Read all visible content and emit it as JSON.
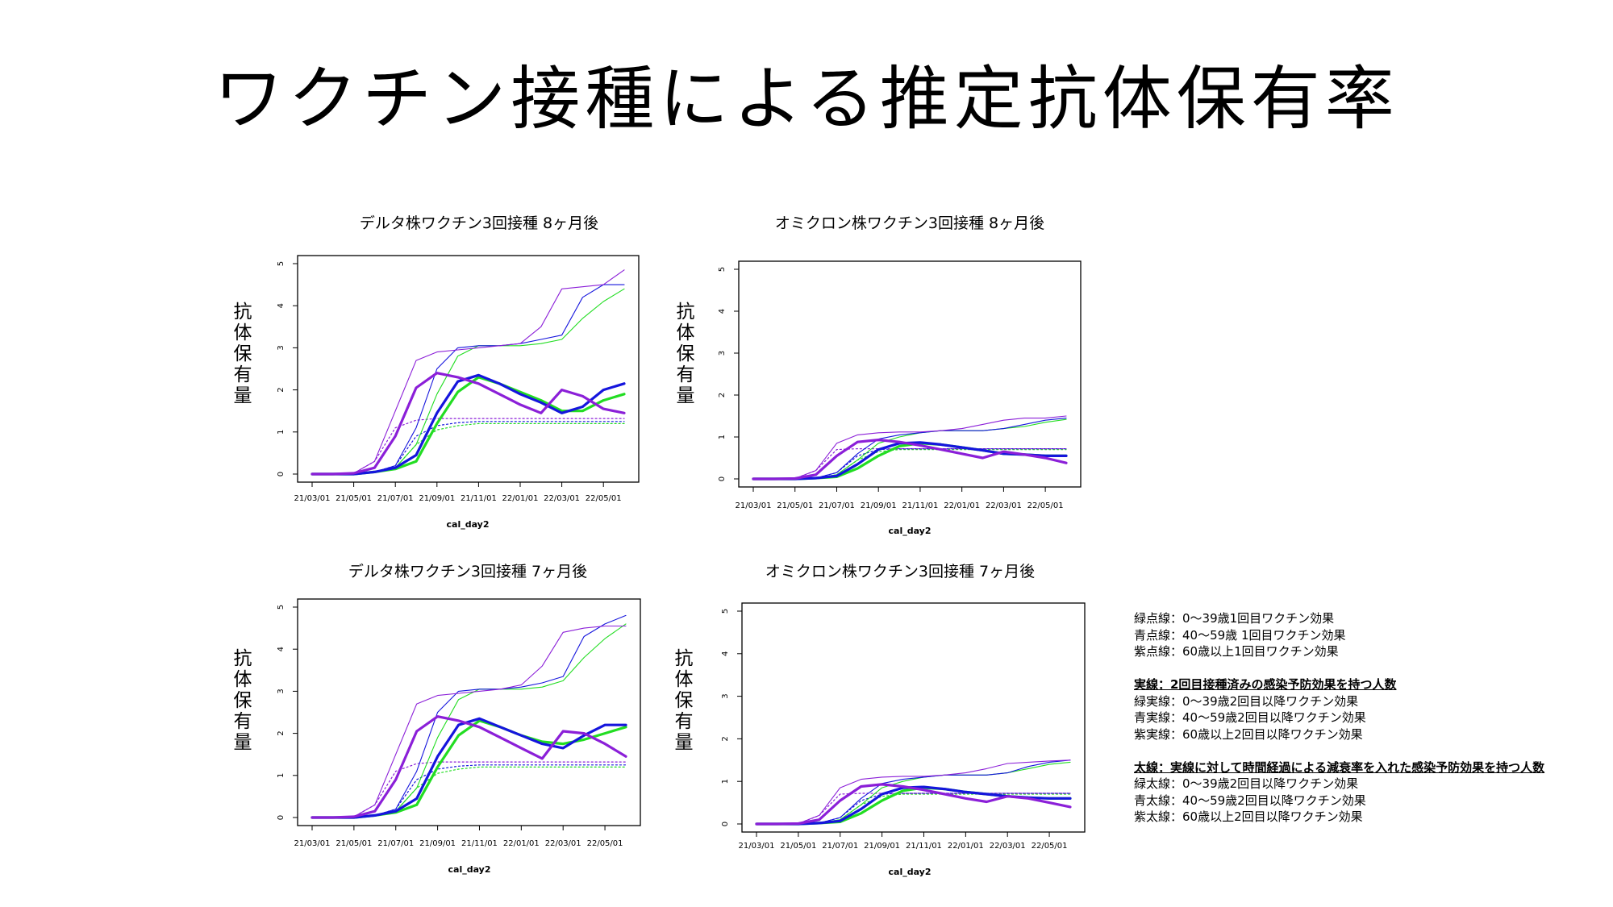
{
  "title": "ワクチン接種による推定抗体保有率",
  "colors": {
    "green": "#22dd22",
    "blue": "#1515dd",
    "purple": "#8b1fd8"
  },
  "chart_data": [
    {
      "type": "line",
      "title": "デルタ株ワクチン3回接種 8ヶ月後",
      "xlabel": "cal_day2",
      "ylabel": "抗体保有量",
      "x": [
        "21/03/01",
        "21/04/01",
        "21/05/01",
        "21/06/01",
        "21/07/01",
        "21/08/01",
        "21/09/01",
        "21/10/01",
        "21/11/01",
        "21/12/01",
        "22/01/01",
        "22/02/01",
        "22/03/01",
        "22/04/01",
        "22/05/01",
        "22/06/01"
      ],
      "xticks": [
        "21/03/01",
        "21/05/01",
        "21/07/01",
        "21/09/01",
        "21/11/01",
        "22/01/01",
        "22/03/01",
        "22/05/01"
      ],
      "ylim": [
        0,
        5
      ],
      "yticks": [
        0,
        1,
        2,
        3,
        4,
        5
      ],
      "series": [
        {
          "name": "緑点線",
          "color": "green",
          "style": "dotted",
          "values": [
            0,
            0,
            0,
            0.05,
            0.15,
            0.7,
            1.05,
            1.15,
            1.2,
            1.2,
            1.2,
            1.2,
            1.2,
            1.2,
            1.2,
            1.2
          ]
        },
        {
          "name": "青点線",
          "color": "blue",
          "style": "dotted",
          "values": [
            0,
            0,
            0,
            0.05,
            0.2,
            0.9,
            1.15,
            1.22,
            1.25,
            1.25,
            1.25,
            1.25,
            1.25,
            1.25,
            1.25,
            1.25
          ]
        },
        {
          "name": "紫点線",
          "color": "purple",
          "style": "dotted",
          "values": [
            0,
            0,
            0.02,
            0.3,
            1.1,
            1.28,
            1.32,
            1.32,
            1.32,
            1.32,
            1.32,
            1.32,
            1.32,
            1.32,
            1.32,
            1.32
          ]
        },
        {
          "name": "緑実線",
          "color": "green",
          "style": "thin",
          "values": [
            0,
            0,
            0,
            0.05,
            0.15,
            0.7,
            1.9,
            2.8,
            3.05,
            3.05,
            3.05,
            3.1,
            3.2,
            3.7,
            4.1,
            4.4
          ]
        },
        {
          "name": "青実線",
          "color": "blue",
          "style": "thin",
          "values": [
            0,
            0,
            0,
            0.05,
            0.2,
            1.1,
            2.5,
            3.0,
            3.05,
            3.05,
            3.1,
            3.2,
            3.3,
            4.2,
            4.5,
            4.5
          ]
        },
        {
          "name": "紫実線",
          "color": "purple",
          "style": "thin",
          "values": [
            0,
            0,
            0.02,
            0.3,
            1.5,
            2.7,
            2.9,
            2.95,
            3.0,
            3.05,
            3.1,
            3.5,
            4.4,
            4.45,
            4.5,
            4.85
          ]
        },
        {
          "name": "緑太線",
          "color": "green",
          "style": "thick",
          "values": [
            0,
            0,
            0,
            0.05,
            0.12,
            0.3,
            1.2,
            1.95,
            2.3,
            2.15,
            1.95,
            1.75,
            1.5,
            1.5,
            1.75,
            1.9
          ]
        },
        {
          "name": "青太線",
          "color": "blue",
          "style": "thick",
          "values": [
            0,
            0,
            0,
            0.05,
            0.15,
            0.45,
            1.45,
            2.2,
            2.35,
            2.15,
            1.9,
            1.7,
            1.45,
            1.6,
            2.0,
            2.15
          ]
        },
        {
          "name": "紫太線",
          "color": "purple",
          "style": "thick",
          "values": [
            0,
            0,
            0.02,
            0.15,
            0.9,
            2.05,
            2.4,
            2.3,
            2.15,
            1.9,
            1.65,
            1.45,
            2.0,
            1.85,
            1.55,
            1.45
          ]
        }
      ]
    },
    {
      "type": "line",
      "title": "オミクロン株ワクチン3回接種 8ヶ月後",
      "xlabel": "cal_day2",
      "ylabel": "抗体保有量",
      "x": [
        "21/03/01",
        "21/04/01",
        "21/05/01",
        "21/06/01",
        "21/07/01",
        "21/08/01",
        "21/09/01",
        "21/10/01",
        "21/11/01",
        "21/12/01",
        "22/01/01",
        "22/02/01",
        "22/03/01",
        "22/04/01",
        "22/05/01",
        "22/06/01"
      ],
      "xticks": [
        "21/03/01",
        "21/05/01",
        "21/07/01",
        "21/09/01",
        "21/11/01",
        "22/01/01",
        "22/03/01",
        "22/05/01"
      ],
      "ylim": [
        0,
        5
      ],
      "yticks": [
        0,
        1,
        2,
        3,
        4,
        5
      ],
      "series": [
        {
          "name": "緑点線",
          "color": "green",
          "style": "dotted",
          "values": [
            0,
            0,
            0,
            0.02,
            0.1,
            0.45,
            0.65,
            0.7,
            0.7,
            0.7,
            0.7,
            0.7,
            0.7,
            0.7,
            0.7,
            0.7
          ]
        },
        {
          "name": "青点線",
          "color": "blue",
          "style": "dotted",
          "values": [
            0,
            0,
            0,
            0.02,
            0.15,
            0.55,
            0.7,
            0.72,
            0.72,
            0.72,
            0.72,
            0.72,
            0.72,
            0.72,
            0.72,
            0.72
          ]
        },
        {
          "name": "紫点線",
          "color": "purple",
          "style": "dotted",
          "values": [
            0,
            0,
            0.01,
            0.2,
            0.7,
            0.72,
            0.72,
            0.72,
            0.72,
            0.72,
            0.72,
            0.72,
            0.72,
            0.72,
            0.72,
            0.72
          ]
        },
        {
          "name": "緑実線",
          "color": "green",
          "style": "thin",
          "values": [
            0,
            0,
            0,
            0.02,
            0.1,
            0.45,
            0.85,
            1.0,
            1.1,
            1.15,
            1.15,
            1.15,
            1.2,
            1.25,
            1.35,
            1.42
          ]
        },
        {
          "name": "青実線",
          "color": "blue",
          "style": "thin",
          "values": [
            0,
            0,
            0,
            0.02,
            0.15,
            0.6,
            0.95,
            1.05,
            1.1,
            1.15,
            1.15,
            1.15,
            1.2,
            1.3,
            1.4,
            1.45
          ]
        },
        {
          "name": "紫実線",
          "color": "purple",
          "style": "thin",
          "values": [
            0,
            0,
            0.01,
            0.2,
            0.85,
            1.05,
            1.1,
            1.12,
            1.12,
            1.15,
            1.2,
            1.3,
            1.4,
            1.45,
            1.45,
            1.5
          ]
        },
        {
          "name": "緑太線",
          "color": "green",
          "style": "thick",
          "values": [
            0,
            0,
            0,
            0.02,
            0.05,
            0.25,
            0.55,
            0.78,
            0.85,
            0.82,
            0.75,
            0.68,
            0.6,
            0.58,
            0.55,
            0.55
          ]
        },
        {
          "name": "青太線",
          "color": "blue",
          "style": "thick",
          "values": [
            0,
            0,
            0,
            0.02,
            0.07,
            0.35,
            0.7,
            0.85,
            0.87,
            0.82,
            0.75,
            0.68,
            0.6,
            0.58,
            0.55,
            0.55
          ]
        },
        {
          "name": "紫太線",
          "color": "purple",
          "style": "thick",
          "values": [
            0,
            0,
            0.01,
            0.1,
            0.55,
            0.88,
            0.93,
            0.88,
            0.8,
            0.7,
            0.6,
            0.5,
            0.65,
            0.58,
            0.5,
            0.38
          ]
        }
      ]
    },
    {
      "type": "line",
      "title": "デルタ株ワクチン3回接種 7ヶ月後",
      "xlabel": "cal_day2",
      "ylabel": "抗体保有量",
      "x": [
        "21/03/01",
        "21/04/01",
        "21/05/01",
        "21/06/01",
        "21/07/01",
        "21/08/01",
        "21/09/01",
        "21/10/01",
        "21/11/01",
        "21/12/01",
        "22/01/01",
        "22/02/01",
        "22/03/01",
        "22/04/01",
        "22/05/01",
        "22/06/01"
      ],
      "xticks": [
        "21/03/01",
        "21/05/01",
        "21/07/01",
        "21/09/01",
        "21/11/01",
        "22/01/01",
        "22/03/01",
        "22/05/01"
      ],
      "ylim": [
        0,
        5
      ],
      "yticks": [
        0,
        1,
        2,
        3,
        4,
        5
      ],
      "series": [
        {
          "name": "緑点線",
          "color": "green",
          "style": "dotted",
          "values": [
            0,
            0,
            0,
            0.05,
            0.15,
            0.7,
            1.05,
            1.15,
            1.2,
            1.2,
            1.2,
            1.2,
            1.2,
            1.2,
            1.2,
            1.2
          ]
        },
        {
          "name": "青点線",
          "color": "blue",
          "style": "dotted",
          "values": [
            0,
            0,
            0,
            0.05,
            0.2,
            0.9,
            1.15,
            1.22,
            1.25,
            1.25,
            1.25,
            1.25,
            1.25,
            1.25,
            1.25,
            1.25
          ]
        },
        {
          "name": "紫点線",
          "color": "purple",
          "style": "dotted",
          "values": [
            0,
            0,
            0.02,
            0.3,
            1.1,
            1.28,
            1.32,
            1.32,
            1.32,
            1.32,
            1.32,
            1.32,
            1.32,
            1.32,
            1.32,
            1.32
          ]
        },
        {
          "name": "緑実線",
          "color": "green",
          "style": "thin",
          "values": [
            0,
            0,
            0,
            0.05,
            0.15,
            0.7,
            1.9,
            2.8,
            3.05,
            3.05,
            3.05,
            3.1,
            3.25,
            3.8,
            4.25,
            4.6
          ]
        },
        {
          "name": "青実線",
          "color": "blue",
          "style": "thin",
          "values": [
            0,
            0,
            0,
            0.05,
            0.2,
            1.1,
            2.5,
            3.0,
            3.05,
            3.05,
            3.1,
            3.2,
            3.35,
            4.3,
            4.6,
            4.8
          ]
        },
        {
          "name": "紫実線",
          "color": "purple",
          "style": "thin",
          "values": [
            0,
            0,
            0.02,
            0.3,
            1.5,
            2.7,
            2.9,
            2.95,
            3.0,
            3.05,
            3.15,
            3.6,
            4.4,
            4.5,
            4.55,
            4.55
          ]
        },
        {
          "name": "緑太線",
          "color": "green",
          "style": "thick",
          "values": [
            0,
            0,
            0,
            0.05,
            0.12,
            0.3,
            1.2,
            1.95,
            2.3,
            2.15,
            1.95,
            1.8,
            1.75,
            1.85,
            2.0,
            2.15
          ]
        },
        {
          "name": "青太線",
          "color": "blue",
          "style": "thick",
          "values": [
            0,
            0,
            0,
            0.05,
            0.15,
            0.45,
            1.45,
            2.2,
            2.35,
            2.15,
            1.95,
            1.75,
            1.65,
            1.95,
            2.2,
            2.2
          ]
        },
        {
          "name": "紫太線",
          "color": "purple",
          "style": "thick",
          "values": [
            0,
            0,
            0.02,
            0.15,
            0.9,
            2.05,
            2.4,
            2.3,
            2.15,
            1.9,
            1.65,
            1.4,
            2.05,
            2.0,
            1.75,
            1.45
          ]
        }
      ]
    },
    {
      "type": "line",
      "title": "オミクロン株ワクチン3回接種 7ヶ月後",
      "xlabel": "cal_day2",
      "ylabel": "抗体保有量",
      "x": [
        "21/03/01",
        "21/04/01",
        "21/05/01",
        "21/06/01",
        "21/07/01",
        "21/08/01",
        "21/09/01",
        "21/10/01",
        "21/11/01",
        "21/12/01",
        "22/01/01",
        "22/02/01",
        "22/03/01",
        "22/04/01",
        "22/05/01",
        "22/06/01"
      ],
      "xticks": [
        "21/03/01",
        "21/05/01",
        "21/07/01",
        "21/09/01",
        "21/11/01",
        "22/01/01",
        "22/03/01",
        "22/05/01"
      ],
      "ylim": [
        0,
        5
      ],
      "yticks": [
        0,
        1,
        2,
        3,
        4,
        5
      ],
      "series": [
        {
          "name": "緑点線",
          "color": "green",
          "style": "dotted",
          "values": [
            0,
            0,
            0,
            0.02,
            0.1,
            0.45,
            0.65,
            0.7,
            0.7,
            0.7,
            0.7,
            0.7,
            0.7,
            0.7,
            0.7,
            0.7
          ]
        },
        {
          "name": "青点線",
          "color": "blue",
          "style": "dotted",
          "values": [
            0,
            0,
            0,
            0.02,
            0.15,
            0.55,
            0.7,
            0.72,
            0.72,
            0.72,
            0.72,
            0.72,
            0.72,
            0.72,
            0.72,
            0.72
          ]
        },
        {
          "name": "紫点線",
          "color": "purple",
          "style": "dotted",
          "values": [
            0,
            0,
            0.01,
            0.2,
            0.7,
            0.72,
            0.72,
            0.72,
            0.72,
            0.72,
            0.72,
            0.72,
            0.72,
            0.72,
            0.72,
            0.72
          ]
        },
        {
          "name": "緑実線",
          "color": "green",
          "style": "thin",
          "values": [
            0,
            0,
            0,
            0.02,
            0.1,
            0.45,
            0.85,
            1.0,
            1.1,
            1.15,
            1.15,
            1.15,
            1.2,
            1.3,
            1.4,
            1.45
          ]
        },
        {
          "name": "青実線",
          "color": "blue",
          "style": "thin",
          "values": [
            0,
            0,
            0,
            0.02,
            0.15,
            0.6,
            0.95,
            1.05,
            1.1,
            1.15,
            1.15,
            1.15,
            1.2,
            1.35,
            1.45,
            1.5
          ]
        },
        {
          "name": "紫実線",
          "color": "purple",
          "style": "thin",
          "values": [
            0,
            0,
            0.01,
            0.2,
            0.85,
            1.05,
            1.1,
            1.12,
            1.12,
            1.15,
            1.2,
            1.3,
            1.42,
            1.45,
            1.48,
            1.5
          ]
        },
        {
          "name": "緑太線",
          "color": "green",
          "style": "thick",
          "values": [
            0,
            0,
            0,
            0.02,
            0.05,
            0.25,
            0.55,
            0.78,
            0.85,
            0.82,
            0.75,
            0.7,
            0.65,
            0.62,
            0.6,
            0.6
          ]
        },
        {
          "name": "青太線",
          "color": "blue",
          "style": "thick",
          "values": [
            0,
            0,
            0,
            0.02,
            0.07,
            0.35,
            0.7,
            0.85,
            0.87,
            0.82,
            0.75,
            0.7,
            0.65,
            0.62,
            0.6,
            0.6
          ]
        },
        {
          "name": "紫太線",
          "color": "purple",
          "style": "thick",
          "values": [
            0,
            0,
            0.01,
            0.1,
            0.55,
            0.88,
            0.93,
            0.88,
            0.8,
            0.7,
            0.6,
            0.52,
            0.65,
            0.6,
            0.5,
            0.4
          ]
        }
      ]
    }
  ],
  "legend": {
    "dotted_lines": [
      "緑点線：0～39歳1回目ワクチン効果",
      "青点線：40～59歳 1回目ワクチン効果",
      "紫点線：60歳以上1回目ワクチン効果"
    ],
    "solid_header": "実線：2回目接種済みの感染予防効果を持つ人数",
    "solid_lines": [
      "緑実線：0～39歳2回目以降ワクチン効果",
      "青実線：40～59歳2回目以降ワクチン効果",
      "紫実線：60歳以上2回目以降ワクチン効果"
    ],
    "thick_header": "太線：実線に対して時間経過による減衰率を入れた感染予防効果を持つ人数",
    "thick_lines": [
      "緑太線：0～39歳2回目以降ワクチン効果",
      "青太線：40～59歳2回目以降ワクチン効果",
      "紫太線：60歳以上2回目以降ワクチン効果"
    ]
  }
}
